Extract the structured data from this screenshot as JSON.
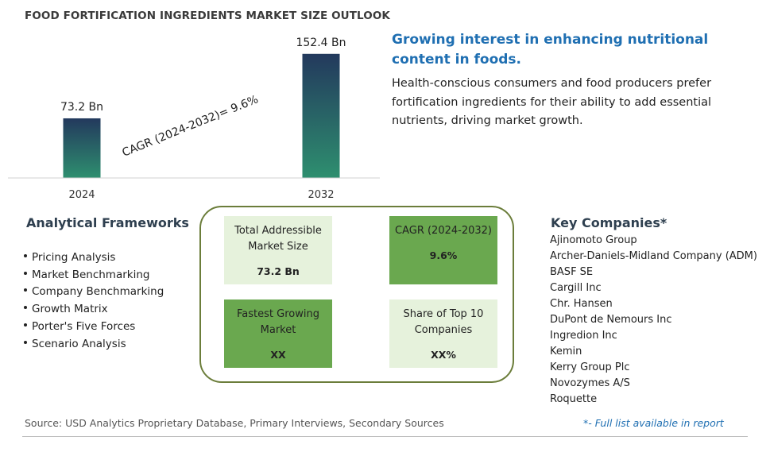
{
  "title": "FOOD FORTIFICATION INGREDIENTS MARKET SIZE OUTLOOK",
  "chart_data": {
    "type": "bar",
    "categories": [
      "2024",
      "2032"
    ],
    "values": [
      73.2,
      152.4
    ],
    "value_labels": [
      "73.2 Bn",
      "152.4 Bn"
    ],
    "annotation": "CAGR (2024-2032)=  9.6%",
    "ylim": [
      0,
      160
    ],
    "bar_colors": [
      "#2e8f6f",
      "#23395d"
    ]
  },
  "headline": "Growing interest in enhancing nutritional content in foods.",
  "description": "Health-conscious consumers and food producers prefer fortification ingredients for their ability to add essential nutrients, driving market growth.",
  "frameworks": {
    "title": "Analytical Frameworks",
    "items": [
      "Pricing Analysis",
      "Market Benchmarking",
      "Company Benchmarking",
      "Growth Matrix",
      "Porter's Five Forces",
      "Scenario Analysis"
    ]
  },
  "cards": {
    "tam": {
      "label": "Total Addressible Market Size",
      "value": "73.2 Bn"
    },
    "cagr": {
      "label": "CAGR (2024-2032)",
      "value": "9.6%"
    },
    "fastest": {
      "label": "Fastest Growing Market",
      "value": "XX"
    },
    "share": {
      "label": "Share of Top 10 Companies",
      "value": "XX%"
    }
  },
  "companies": {
    "title": "Key Companies*",
    "items": [
      "Ajinomoto Group",
      "Archer-Daniels-Midland Company (ADM)",
      "BASF SE",
      "Cargill Inc",
      "Chr. Hansen",
      "DuPont de Nemours Inc",
      "Ingredion Inc",
      "Kemin",
      "Kerry Group Plc",
      "Novozymes A/S",
      "Roquette"
    ]
  },
  "source": "Source: USD Analytics Proprietary Database, Primary Interviews, Secondary Sources",
  "footnote": "*- Full list available in report",
  "colors": {
    "accent": "#1f6fb2",
    "card_dark": "#6aa84f",
    "card_light": "#e6f2dc",
    "panel_border": "#6b7d3a"
  }
}
